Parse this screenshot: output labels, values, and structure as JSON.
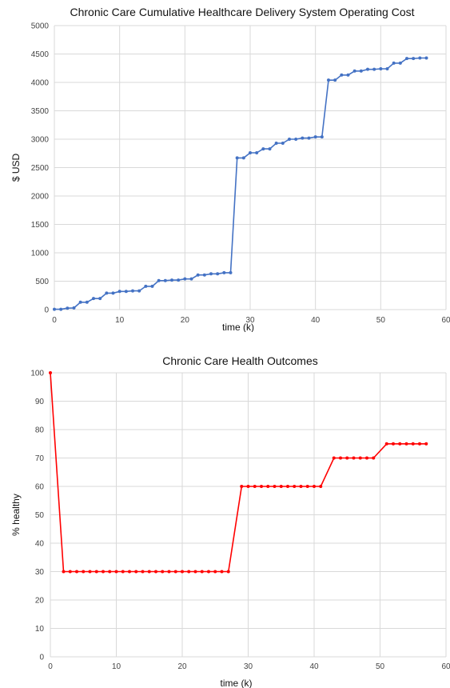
{
  "chart_data": [
    {
      "type": "line",
      "title": "Chronic Care Cumulative Healthcare Delivery System Operating Cost",
      "xlabel": "time (k)",
      "ylabel": "$ USD",
      "xlim": [
        0,
        60
      ],
      "ylim": [
        0,
        5000
      ],
      "xticks": [
        0,
        10,
        20,
        30,
        40,
        50,
        60
      ],
      "yticks": [
        0,
        500,
        1000,
        1500,
        2000,
        2500,
        3000,
        3500,
        4000,
        4500,
        5000
      ],
      "grid": true,
      "line_color": "#4472c4",
      "series": [
        {
          "x": [
            0,
            1,
            2,
            3,
            4,
            5,
            6,
            7,
            8,
            9,
            10,
            11,
            12,
            13,
            14,
            15,
            16,
            17,
            18,
            19,
            20,
            21,
            22,
            23,
            24,
            25,
            26,
            27,
            28,
            29,
            30,
            31,
            32,
            33,
            34,
            35,
            36,
            37,
            38,
            39,
            40,
            41,
            42,
            43,
            44,
            45,
            46,
            47,
            48,
            49,
            50,
            51,
            52,
            53,
            54,
            55,
            56,
            57
          ],
          "y": [
            5,
            5,
            25,
            30,
            130,
            130,
            195,
            195,
            290,
            290,
            320,
            320,
            330,
            330,
            410,
            410,
            510,
            510,
            520,
            520,
            540,
            540,
            610,
            610,
            630,
            630,
            650,
            650,
            2670,
            2670,
            2760,
            2760,
            2830,
            2830,
            2930,
            2930,
            3000,
            3000,
            3020,
            3020,
            3040,
            3040,
            4040,
            4040,
            4130,
            4130,
            4200,
            4200,
            4230,
            4230,
            4240,
            4240,
            4340,
            4340,
            4420,
            4420,
            4430,
            4430
          ]
        }
      ]
    },
    {
      "type": "line",
      "title": "Chronic Care Health Outcomes",
      "xlabel": "time (k)",
      "ylabel": "% healthy",
      "xlim": [
        0,
        60
      ],
      "ylim": [
        0,
        100
      ],
      "xticks": [
        0,
        10,
        20,
        30,
        40,
        50,
        60
      ],
      "yticks": [
        0,
        10,
        20,
        30,
        40,
        50,
        60,
        70,
        80,
        90,
        100
      ],
      "grid": true,
      "line_color": "#ff0000",
      "series": [
        {
          "x": [
            0,
            2,
            3,
            4,
            5,
            6,
            7,
            8,
            9,
            10,
            11,
            12,
            13,
            14,
            15,
            16,
            17,
            18,
            19,
            20,
            21,
            22,
            23,
            24,
            25,
            26,
            27,
            29,
            30,
            31,
            32,
            33,
            34,
            35,
            36,
            37,
            38,
            39,
            40,
            41,
            43,
            44,
            45,
            46,
            47,
            48,
            49,
            51,
            52,
            53,
            54,
            55,
            56,
            57
          ],
          "y": [
            100,
            30,
            30,
            30,
            30,
            30,
            30,
            30,
            30,
            30,
            30,
            30,
            30,
            30,
            30,
            30,
            30,
            30,
            30,
            30,
            30,
            30,
            30,
            30,
            30,
            30,
            30,
            60,
            60,
            60,
            60,
            60,
            60,
            60,
            60,
            60,
            60,
            60,
            60,
            60,
            70,
            70,
            70,
            70,
            70,
            70,
            70,
            75,
            75,
            75,
            75,
            75,
            75,
            75
          ]
        }
      ]
    }
  ]
}
